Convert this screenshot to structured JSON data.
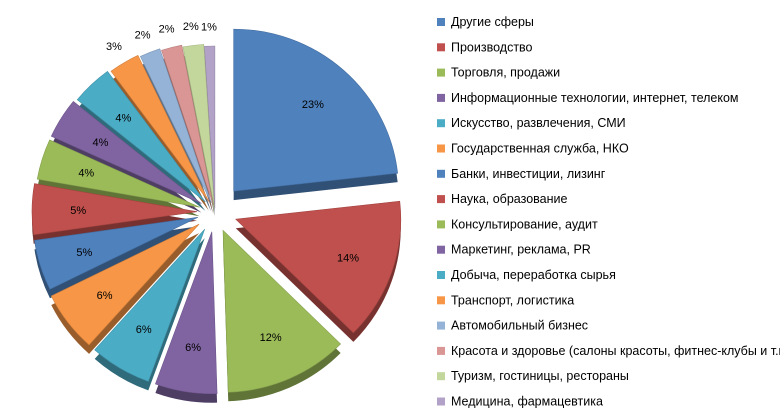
{
  "chart_data": {
    "type": "pie",
    "style": "3d-exploded",
    "title": "",
    "legend_position": "right",
    "series": [
      {
        "categories": [
          "Другие сферы",
          "Производство",
          "Торговля, продажи",
          "Информационные технологии, интернет, телеком",
          "Искусство, развлечения, СМИ",
          "Государственная служба, НКО",
          "Банки, инвестиции, лизинг",
          "Наука, образование",
          "Консультирование, аудит",
          "Маркетинг, реклама, PR",
          "Добыча, переработка сырья",
          "Транспорт, логистика",
          "Автомобильный бизнес",
          "Красота и здоровье (салоны красоты, фитнес-клубы и т.п.)",
          "Туризм, гостиницы, рестораны",
          "Медицина, фармацевтика"
        ],
        "values": [
          23,
          14,
          12,
          6,
          6,
          6,
          5,
          5,
          4,
          4,
          4,
          3,
          2,
          2,
          2,
          1
        ],
        "labels": [
          "23%",
          "14%",
          "12%",
          "6%",
          "6%",
          "6%",
          "5%",
          "5%",
          "4%",
          "4%",
          "4%",
          "3%",
          "2%",
          "2%",
          "2%",
          "1%"
        ]
      }
    ],
    "colors": [
      "#4f81bd",
      "#c0504d",
      "#9bbb59",
      "#8064a2",
      "#4bacc6",
      "#f79646",
      "#4f81bd",
      "#c0504d",
      "#9bbb59",
      "#8064a2",
      "#4bacc6",
      "#f79646",
      "#95b3d7",
      "#d99694",
      "#c3d69b",
      "#b3a2c7"
    ]
  }
}
